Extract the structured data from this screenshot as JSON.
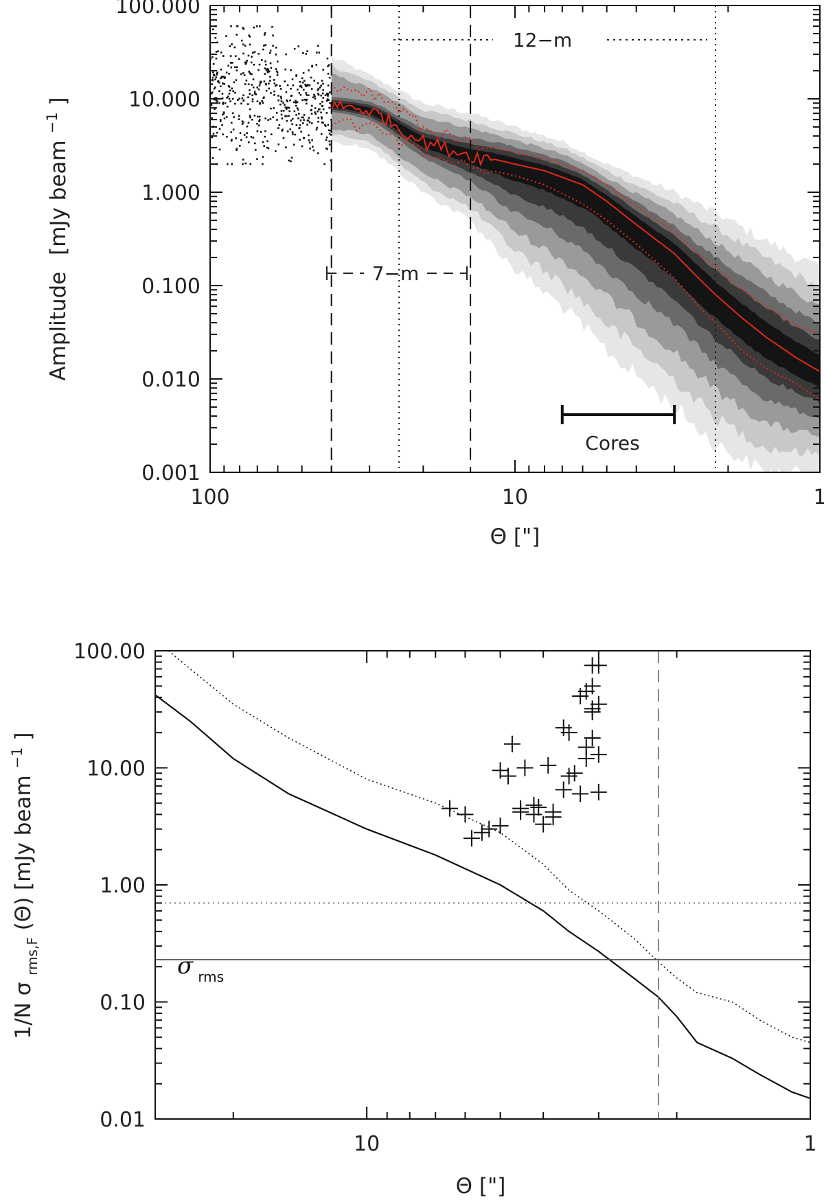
{
  "chart_data": [
    {
      "id": "top",
      "type": "scatter",
      "x_scale": "log",
      "y_scale": "log",
      "xlim": [
        100,
        1
      ],
      "ylim": [
        0.001,
        100
      ],
      "xlabel": "Θ [\"]",
      "ylabel_main": "Amplitude",
      "ylabel_unit": "[mJy beam",
      "ylabel_sup": "−1",
      "ylabel_close": "]",
      "xticks": [
        {
          "value": 100,
          "label": "100"
        },
        {
          "value": 10,
          "label": "10"
        },
        {
          "value": 1,
          "label": "1"
        }
      ],
      "yticks": [
        {
          "value": 100,
          "label": "100.000"
        },
        {
          "value": 10,
          "label": "10.000"
        },
        {
          "value": 1,
          "label": "1.000"
        },
        {
          "value": 0.1,
          "label": "0.100"
        },
        {
          "value": 0.01,
          "label": "0.010"
        },
        {
          "value": 0.001,
          "label": "0.001"
        }
      ],
      "vlines": [
        {
          "x": 40,
          "style": "dashed"
        },
        {
          "x": 24,
          "style": "dotted"
        },
        {
          "x": 14,
          "style": "dashed"
        },
        {
          "x": 2.2,
          "style": "dotted"
        }
      ],
      "annotations": {
        "twelve_m": "12−m",
        "seven_m": "7−m",
        "cores": "Cores"
      },
      "cores_range": [
        7,
        3
      ],
      "scatter_xrange": [
        100,
        40
      ],
      "scatter_yrange": [
        2,
        60
      ],
      "density_bands": [
        {
          "x": 40,
          "lo": 3.5,
          "hi": 28
        },
        {
          "x": 30,
          "lo": 3.0,
          "hi": 18
        },
        {
          "x": 20,
          "lo": 1.0,
          "hi": 9
        },
        {
          "x": 14,
          "lo": 0.5,
          "hi": 7
        },
        {
          "x": 10,
          "lo": 0.15,
          "hi": 5
        },
        {
          "x": 7,
          "lo": 0.06,
          "hi": 3.5
        },
        {
          "x": 5,
          "lo": 0.02,
          "hi": 2.0
        },
        {
          "x": 3,
          "lo": 0.005,
          "hi": 1.0
        },
        {
          "x": 2.2,
          "lo": 0.002,
          "hi": 0.6
        },
        {
          "x": 1.5,
          "lo": 0.001,
          "hi": 0.3
        },
        {
          "x": 1,
          "lo": 0.001,
          "hi": 0.15
        }
      ],
      "series": [
        {
          "name": "median",
          "color": "#e0291b",
          "style": "solid",
          "x": [
            40,
            35,
            30,
            27,
            24,
            20,
            17,
            14,
            12,
            10,
            8,
            6,
            5,
            4,
            3,
            2.5,
            2.2,
            1.8,
            1.5,
            1.2,
            1
          ],
          "y": [
            8.5,
            8.2,
            7.5,
            6.5,
            5.0,
            3.5,
            3.0,
            2.5,
            2.3,
            2.0,
            1.7,
            1.2,
            0.8,
            0.45,
            0.22,
            0.12,
            0.08,
            0.045,
            0.028,
            0.017,
            0.012
          ]
        },
        {
          "name": "upper",
          "color": "#e0291b",
          "style": "dotted",
          "x": [
            40,
            30,
            24,
            20,
            14,
            10,
            8,
            6,
            5,
            4,
            3,
            2.5,
            2.2,
            1.8,
            1.5,
            1.2,
            1
          ],
          "y": [
            14,
            12,
            8.5,
            5.0,
            3.3,
            2.7,
            2.3,
            1.7,
            1.2,
            0.7,
            0.38,
            0.22,
            0.16,
            0.09,
            0.06,
            0.038,
            0.03
          ]
        },
        {
          "name": "lower",
          "color": "#e0291b",
          "style": "dotted",
          "x": [
            40,
            30,
            24,
            20,
            14,
            10,
            8,
            6,
            5,
            4,
            3,
            2.5,
            2.2,
            1.8,
            1.5,
            1.2,
            1
          ],
          "y": [
            6.0,
            5.0,
            3.5,
            2.6,
            1.9,
            1.5,
            1.2,
            0.75,
            0.5,
            0.28,
            0.12,
            0.06,
            0.04,
            0.02,
            0.013,
            0.009,
            0.006
          ]
        }
      ]
    },
    {
      "id": "bottom",
      "type": "scatter",
      "x_scale": "log",
      "y_scale": "log",
      "xlim": [
        30,
        1
      ],
      "ylim": [
        0.01,
        100
      ],
      "xlabel": "Θ [\"]",
      "ylabel_pre": "1/N σ",
      "ylabel_sub": "rms,F",
      "ylabel_mid": "(Θ) [mJy beam",
      "ylabel_sup": "−1",
      "ylabel_close": "]",
      "xticks": [
        {
          "value": 10,
          "label": "10"
        },
        {
          "value": 1,
          "label": "1"
        }
      ],
      "yticks": [
        {
          "value": 100,
          "label": "100.00"
        },
        {
          "value": 10,
          "label": "10.00"
        },
        {
          "value": 1,
          "label": "1.00"
        },
        {
          "value": 0.1,
          "label": "0.10"
        },
        {
          "value": 0.01,
          "label": "0.01"
        }
      ],
      "sigma_label": "σ",
      "sigma_sub": "rms",
      "hlines": [
        {
          "y": 0.7,
          "style": "dotted"
        },
        {
          "y": 0.23,
          "style": "solid"
        }
      ],
      "vlines": [
        {
          "x": 2.2,
          "style": "dashed"
        }
      ],
      "series": [
        {
          "name": "solid_curve",
          "style": "solid",
          "x": [
            30,
            25,
            20,
            15,
            10,
            7,
            5,
            4,
            3.5,
            3,
            2.5,
            2.2,
            2,
            1.8,
            1.5,
            1.3,
            1.1,
            1
          ],
          "y": [
            42,
            25,
            12,
            6,
            3,
            1.8,
            1.0,
            0.6,
            0.4,
            0.27,
            0.16,
            0.11,
            0.075,
            0.045,
            0.033,
            0.024,
            0.017,
            0.015
          ]
        },
        {
          "name": "dotted_curve",
          "style": "dotted",
          "x": [
            28,
            25,
            20,
            15,
            10,
            7,
            5,
            4,
            3.5,
            3,
            2.5,
            2.2,
            2,
            1.8,
            1.5,
            1.3,
            1.1,
            1
          ],
          "y": [
            100,
            70,
            35,
            18,
            8,
            5,
            2.8,
            1.5,
            0.9,
            0.6,
            0.35,
            0.22,
            0.16,
            0.12,
            0.1,
            0.07,
            0.05,
            0.045
          ]
        },
        {
          "name": "crosses",
          "style": "markers",
          "x": [
            6.5,
            6.0,
            5.8,
            5.5,
            5.3,
            5.0,
            5.0,
            4.8,
            4.7,
            4.5,
            4.5,
            4.4,
            4.2,
            4.2,
            4.1,
            4.0,
            3.9,
            3.8,
            3.8,
            3.6,
            3.6,
            3.5,
            3.5,
            3.4,
            3.3,
            3.3,
            3.2,
            3.2,
            3.2,
            3.1,
            3.1,
            3.1,
            3.1,
            3.1,
            3.0,
            3.0,
            3.0,
            3.0
          ],
          "y": [
            4.5,
            4.0,
            2.5,
            2.8,
            3.0,
            3.2,
            9.5,
            8.5,
            16,
            4.5,
            4.2,
            10,
            4.0,
            4.8,
            4.6,
            3.3,
            10.5,
            4.2,
            3.8,
            22,
            6.5,
            20,
            8.5,
            9.0,
            41,
            6.0,
            15,
            12,
            45,
            30,
            50,
            32,
            18,
            75,
            75,
            35,
            13,
            6.2
          ]
        }
      ]
    }
  ]
}
